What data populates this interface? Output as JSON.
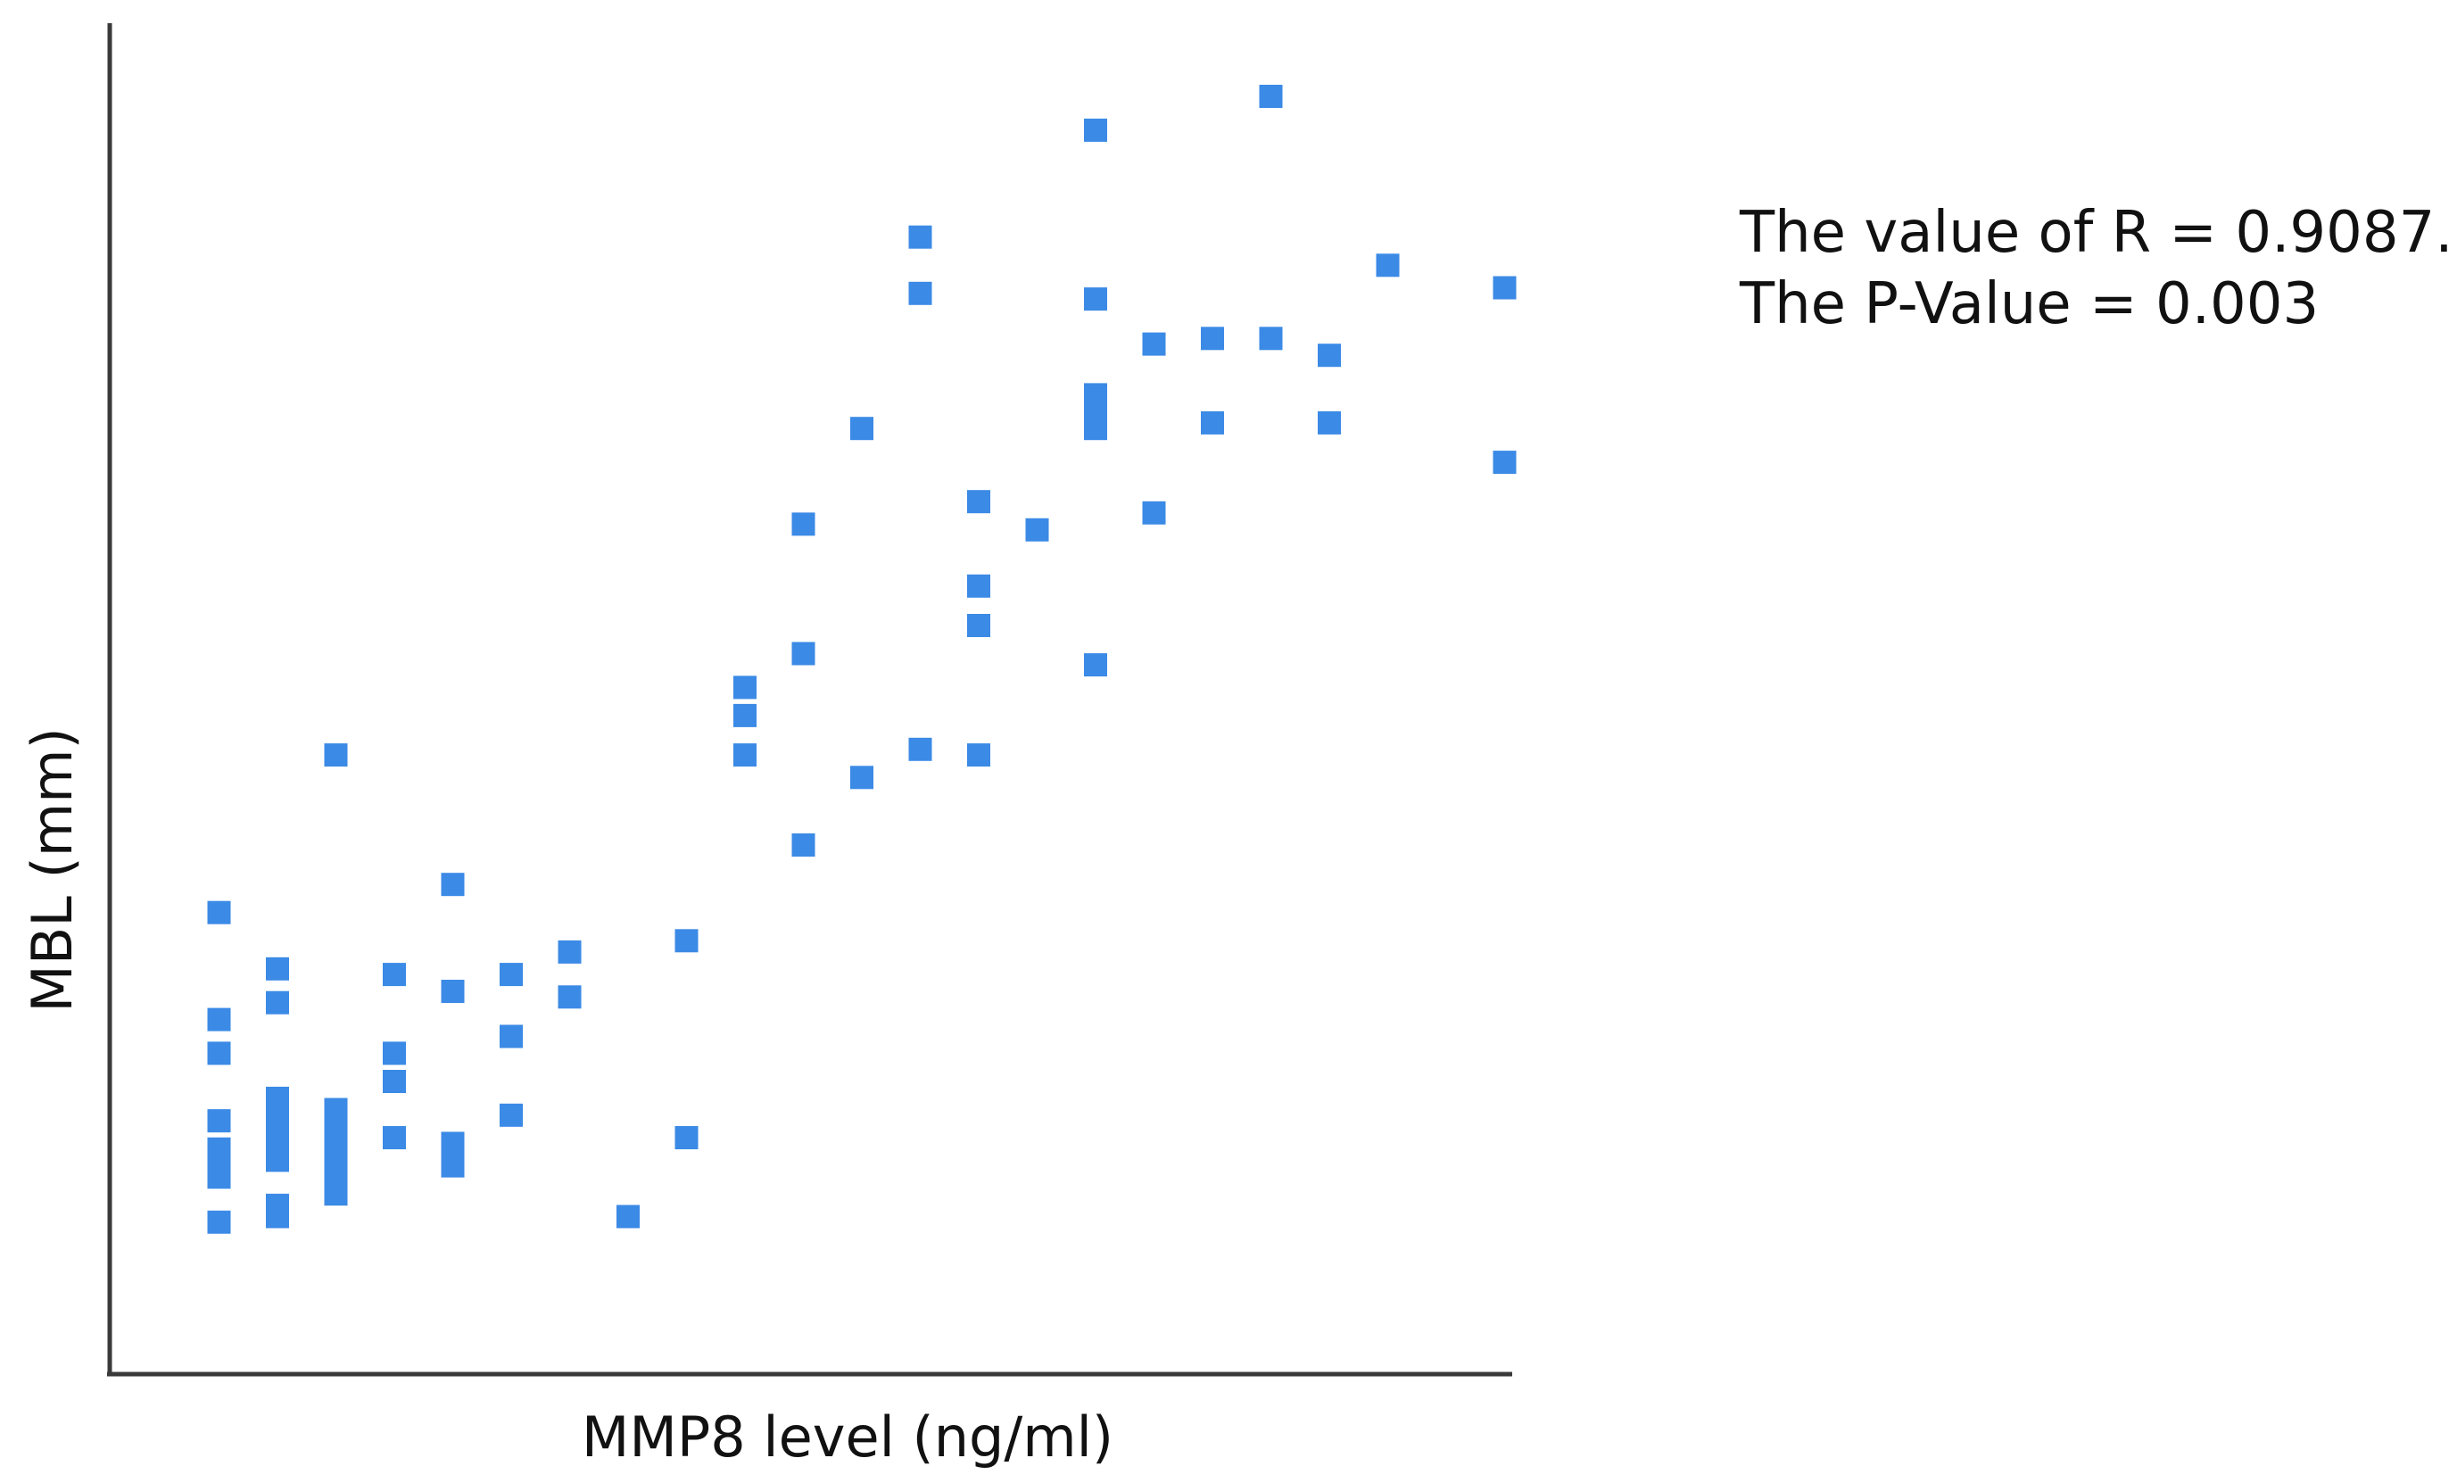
{
  "chart_data": {
    "type": "scatter",
    "xlabel": "MMP8 level (ng/ml)",
    "ylabel": "MBL (mm)",
    "xlim": [
      0,
      24
    ],
    "ylim": [
      0,
      24
    ],
    "grid": false,
    "marker_color": "#3b8ae6",
    "axis_color": "#3a3a3a",
    "annotations": [
      "The value of R =  0.9087.",
      "The P-Value =  0.003"
    ],
    "series": [
      {
        "points": [
          [
            1,
            8.2
          ],
          [
            1,
            6.3
          ],
          [
            1,
            5.7
          ],
          [
            1,
            4.5
          ],
          [
            1,
            4.0
          ],
          [
            1,
            3.8
          ],
          [
            1,
            3.5
          ],
          [
            1,
            2.7
          ],
          [
            2,
            7.2
          ],
          [
            2,
            6.6
          ],
          [
            2,
            4.9
          ],
          [
            2,
            4.7
          ],
          [
            2,
            4.4
          ],
          [
            2,
            4.1
          ],
          [
            2,
            3.8
          ],
          [
            2,
            3.0
          ],
          [
            2,
            2.8
          ],
          [
            3,
            11.0
          ],
          [
            3,
            4.7
          ],
          [
            3,
            4.4
          ],
          [
            3,
            4.1
          ],
          [
            3,
            3.8
          ],
          [
            3,
            3.4
          ],
          [
            3,
            3.2
          ],
          [
            4,
            7.1
          ],
          [
            4,
            5.7
          ],
          [
            4,
            5.2
          ],
          [
            4,
            4.2
          ],
          [
            5,
            8.7
          ],
          [
            5,
            6.8
          ],
          [
            5,
            4.1
          ],
          [
            5,
            3.7
          ],
          [
            6,
            7.1
          ],
          [
            6,
            6.0
          ],
          [
            6,
            4.6
          ],
          [
            7,
            7.5
          ],
          [
            7,
            6.7
          ],
          [
            8,
            2.8
          ],
          [
            9,
            7.7
          ],
          [
            9,
            4.2
          ],
          [
            10,
            12.2
          ],
          [
            10,
            11.7
          ],
          [
            10,
            11.0
          ],
          [
            11,
            15.1
          ],
          [
            11,
            12.8
          ],
          [
            11,
            9.4
          ],
          [
            12,
            16.8
          ],
          [
            12,
            10.6
          ],
          [
            13,
            20.2
          ],
          [
            13,
            19.2
          ],
          [
            13,
            11.1
          ],
          [
            14,
            15.5
          ],
          [
            14,
            14.0
          ],
          [
            14,
            13.3
          ],
          [
            14,
            11.0
          ],
          [
            15,
            15.0
          ],
          [
            16,
            22.1
          ],
          [
            16,
            19.1
          ],
          [
            16,
            17.4
          ],
          [
            16,
            17.1
          ],
          [
            16,
            16.8
          ],
          [
            16,
            12.6
          ],
          [
            17,
            18.3
          ],
          [
            17,
            15.3
          ],
          [
            18,
            18.4
          ],
          [
            18,
            16.9
          ],
          [
            19,
            22.7
          ],
          [
            19,
            18.4
          ],
          [
            20,
            18.1
          ],
          [
            20,
            16.9
          ],
          [
            21,
            19.7
          ],
          [
            23,
            19.3
          ],
          [
            23,
            16.2
          ]
        ]
      }
    ]
  }
}
